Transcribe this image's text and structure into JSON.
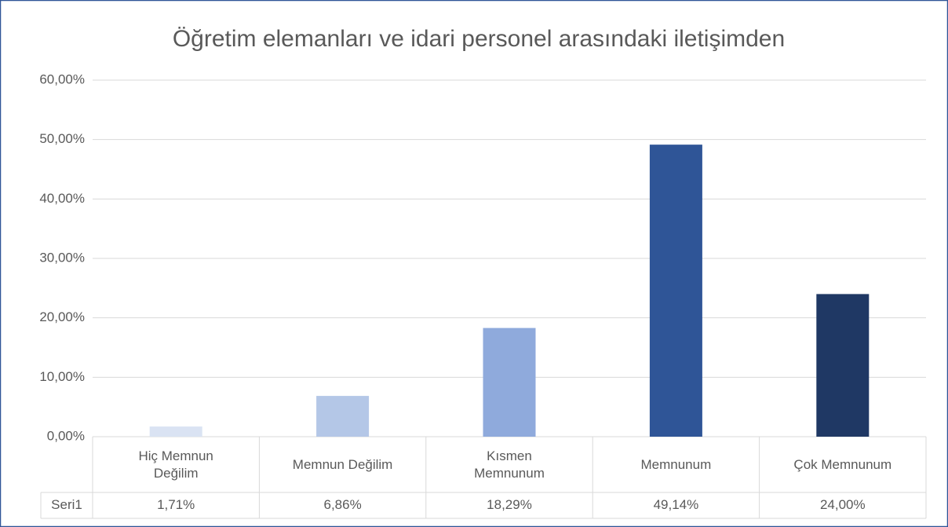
{
  "chart_data": {
    "type": "bar",
    "title": "Öğretim elemanları ve idari personel arasındaki iletişimden",
    "categories": [
      "Hiç Memnun Değilim",
      "Memnun Değilim",
      "Kısmen Memnunum",
      "Memnunum",
      "Çok Memnunum"
    ],
    "series": [
      {
        "name": "Seri1",
        "values": [
          1.71,
          6.86,
          18.29,
          49.14,
          24.0
        ],
        "value_labels": [
          "1,71%",
          "6,86%",
          "18,29%",
          "49,14%",
          "24,00%"
        ]
      }
    ],
    "colors": [
      "#dae3f3",
      "#b4c7e7",
      "#8faadc",
      "#2f5597",
      "#1f3864"
    ],
    "ylim": [
      0,
      60
    ],
    "yticks": [
      {
        "value": 0,
        "label": "0,00%"
      },
      {
        "value": 10,
        "label": "10,00%"
      },
      {
        "value": 20,
        "label": "20,00%"
      },
      {
        "value": 30,
        "label": "30,00%"
      },
      {
        "value": 40,
        "label": "40,00%"
      },
      {
        "value": 50,
        "label": "50,00%"
      },
      {
        "value": 60,
        "label": "60,00%"
      }
    ],
    "grid": true,
    "data_table": true
  }
}
